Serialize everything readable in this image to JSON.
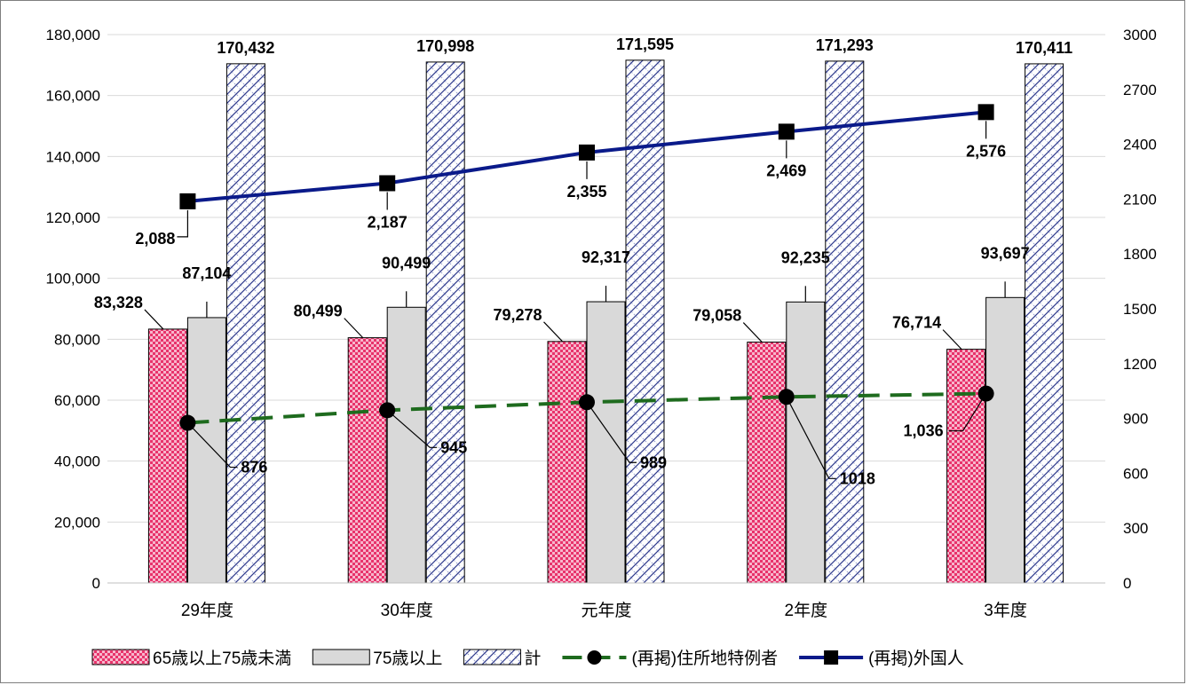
{
  "chart_data": {
    "type": "bar",
    "categories": [
      "29年度",
      "30年度",
      "元年度",
      "2年度",
      "3年度"
    ],
    "series": [
      {
        "name": "65歳以上75歳未満",
        "type": "bar",
        "axis": "left",
        "values": [
          83328,
          80499,
          79278,
          79058,
          76714
        ],
        "labels": [
          "83,328",
          "80,499",
          "79,278",
          "79,058",
          "76,714"
        ],
        "color": "#e8336b"
      },
      {
        "name": "75歳以上",
        "type": "bar",
        "axis": "left",
        "values": [
          87104,
          90499,
          92317,
          92235,
          93697
        ],
        "labels": [
          "87,104",
          "90,499",
          "92,317",
          "92,235",
          "93,697"
        ],
        "color": "#d9d9d9"
      },
      {
        "name": "計",
        "type": "bar",
        "axis": "left",
        "values": [
          170432,
          170998,
          171595,
          171293,
          170411
        ],
        "labels": [
          "170,432",
          "170,998",
          "171,595",
          "171,293",
          "170,411"
        ],
        "color": "#2e3a8c"
      },
      {
        "name": "(再掲)住所地特例者",
        "type": "line",
        "axis": "right",
        "values": [
          876,
          945,
          989,
          1018,
          1036
        ],
        "labels": [
          "876",
          "945",
          "989",
          "1018",
          "1,036"
        ],
        "color": "#1e6b1e"
      },
      {
        "name": "(再掲)外国人",
        "type": "line",
        "axis": "right",
        "values": [
          2088,
          2187,
          2355,
          2469,
          2576
        ],
        "labels": [
          "2,088",
          "2,187",
          "2,355",
          "2,469",
          "2,576"
        ],
        "color": "#0a1a8a"
      }
    ],
    "y_left": {
      "ylim": [
        0,
        180000
      ],
      "ticks": [
        "0",
        "20,000",
        "40,000",
        "60,000",
        "80,000",
        "100,000",
        "120,000",
        "140,000",
        "160,000",
        "180,000"
      ]
    },
    "y_right": {
      "ylim": [
        0,
        3000
      ],
      "ticks": [
        "0",
        "300",
        "600",
        "900",
        "1200",
        "1500",
        "1800",
        "2100",
        "2400",
        "2700",
        "3000"
      ]
    },
    "grid": true,
    "legend": "bottom",
    "title": "",
    "xlabel": "",
    "ylabel": ""
  }
}
